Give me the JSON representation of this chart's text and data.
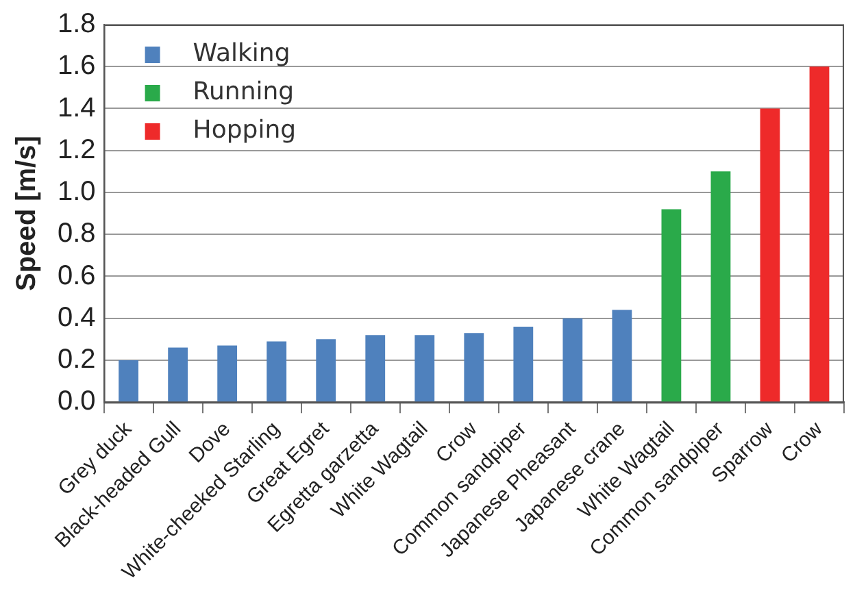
{
  "chart_data": {
    "type": "bar",
    "ylabel": "Speed [m/s]",
    "categories": [
      "Grey duck",
      "Black-headed Gull",
      "Dove",
      "White-cheeked Starling",
      "Great Egret",
      "Egretta garzetta",
      "White Wagtail",
      "Crow",
      "Common sandpiper",
      "Japanese Pheasant",
      "Japanese crane",
      "White Wagtail",
      "Common sandpiper",
      "Sparrow",
      "Crow"
    ],
    "series": [
      {
        "name": "Walking",
        "color": "#4f81bd",
        "values": [
          0.2,
          0.26,
          0.27,
          0.29,
          0.3,
          0.32,
          0.32,
          0.33,
          0.36,
          0.4,
          0.44,
          null,
          null,
          null,
          null
        ]
      },
      {
        "name": "Running",
        "color": "#2aaa4a",
        "values": [
          null,
          null,
          null,
          null,
          null,
          null,
          null,
          null,
          null,
          null,
          null,
          0.92,
          1.1,
          null,
          null
        ]
      },
      {
        "name": "Hopping",
        "color": "#ee2a2a",
        "values": [
          null,
          null,
          null,
          null,
          null,
          null,
          null,
          null,
          null,
          null,
          null,
          null,
          null,
          1.4,
          1.6
        ]
      }
    ],
    "ylim": [
      0,
      1.8
    ],
    "yticks": [
      {
        "value": 0,
        "label": "0.0"
      },
      0.2,
      0.4,
      0.6,
      0.8,
      {
        "value": 1,
        "label": "1.0"
      },
      1.2,
      1.4,
      1.6,
      1.8
    ],
    "grid": "y",
    "legend": "top left"
  }
}
